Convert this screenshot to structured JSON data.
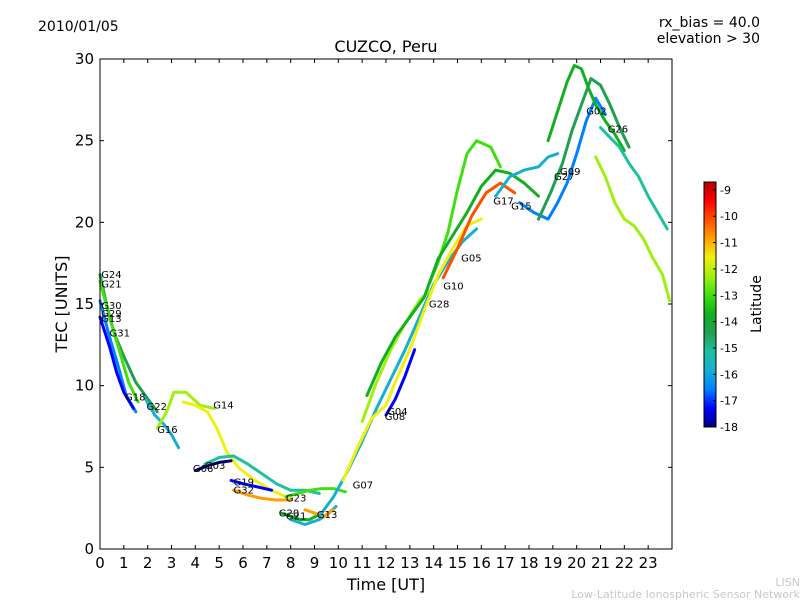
{
  "date_label": "2010/01/05",
  "params": [
    "rx_bias = 40.0",
    "elevation > 30"
  ],
  "watermark": [
    "LISN",
    "Low-Latitude Ionospheric Sensor Network"
  ],
  "chart_data": {
    "type": "scatter",
    "title": "CUZCO, Peru",
    "xlabel": "Time [UT]",
    "ylabel": "TEC [UNITS]",
    "xlim": [
      0,
      24
    ],
    "ylim": [
      0,
      30
    ],
    "xticks": [
      "0",
      "1",
      "2",
      "3",
      "4",
      "5",
      "6",
      "7",
      "8",
      "9",
      "10",
      "11",
      "12",
      "13",
      "14",
      "15",
      "16",
      "17",
      "18",
      "19",
      "20",
      "21",
      "22",
      "23"
    ],
    "yticks": [
      "0",
      "5",
      "10",
      "15",
      "20",
      "25",
      "30"
    ],
    "colorbar": {
      "label": "Latitude",
      "range": [
        -18,
        -8.7
      ],
      "ticks": [
        "-9",
        "-10",
        "-11",
        "-12",
        "-13",
        "-14",
        "-15",
        "-16",
        "-17",
        "-18"
      ],
      "colors": [
        "#00007f",
        "#0000ff",
        "#0080ff",
        "#15b0d0",
        "#1fc0a0",
        "#20a050",
        "#10b020",
        "#40e010",
        "#a0f010",
        "#f0f010",
        "#ffa000",
        "#ff5000",
        "#ff0000",
        "#b00000"
      ]
    },
    "series": [
      {
        "name": "G24",
        "points": [
          [
            0.0,
            16.8
          ],
          [
            0.3,
            14.8
          ],
          [
            0.6,
            13.2
          ],
          [
            1.0,
            11.8
          ],
          [
            1.5,
            10.2
          ],
          [
            2.0,
            9.2
          ],
          [
            2.4,
            8.4
          ]
        ],
        "lat": -14.5
      },
      {
        "name": "G21",
        "points": [
          [
            0.0,
            16.4
          ],
          [
            0.4,
            14.2
          ],
          [
            0.8,
            12.2
          ],
          [
            1.2,
            10.2
          ],
          [
            1.6,
            9.0
          ]
        ],
        "lat": -13.2
      },
      {
        "name": "G30",
        "points": [
          [
            0.0,
            15.2
          ],
          [
            0.4,
            13.0
          ],
          [
            0.8,
            11.0
          ],
          [
            1.1,
            9.4
          ],
          [
            1.5,
            8.4
          ]
        ],
        "lat": -16.8
      },
      {
        "name": "G31",
        "points": [
          [
            0.0,
            14.2
          ],
          [
            0.4,
            12.4
          ],
          [
            0.7,
            10.8
          ],
          [
            1.0,
            9.6
          ],
          [
            1.4,
            8.6
          ]
        ],
        "lat": -17.6
      },
      {
        "name": "G22",
        "points": [
          [
            1.9,
            9.2
          ],
          [
            2.3,
            8.2
          ],
          [
            2.7,
            7.6
          ],
          [
            3.0,
            7.0
          ],
          [
            3.3,
            6.2
          ]
        ],
        "lat": -16.2
      },
      {
        "name": "G16",
        "points": [
          [
            2.4,
            7.4
          ],
          [
            2.8,
            8.4
          ],
          [
            3.1,
            9.6
          ],
          [
            3.6,
            9.6
          ],
          [
            4.2,
            8.8
          ],
          [
            4.8,
            8.6
          ]
        ],
        "lat": -12.4
      },
      {
        "name": "G14",
        "points": [
          [
            3.5,
            9.0
          ],
          [
            4.0,
            8.8
          ],
          [
            4.5,
            8.4
          ],
          [
            4.9,
            7.4
          ],
          [
            5.3,
            6.0
          ],
          [
            5.8,
            5.0
          ],
          [
            6.5,
            4.2
          ],
          [
            7.2,
            3.6
          ],
          [
            7.8,
            3.2
          ]
        ],
        "lat": -11.6
      },
      {
        "name": "G06",
        "points": [
          [
            4.0,
            4.8
          ],
          [
            4.5,
            5.1
          ],
          [
            5.0,
            5.3
          ],
          [
            5.5,
            5.4
          ]
        ],
        "lat": -17.8
      },
      {
        "name": "G03",
        "points": [
          [
            4.4,
            5.2
          ],
          [
            5.0,
            5.6
          ],
          [
            5.6,
            5.7
          ],
          [
            6.2,
            5.2
          ],
          [
            6.8,
            4.6
          ],
          [
            7.4,
            4.0
          ],
          [
            8.0,
            3.6
          ],
          [
            8.6,
            3.6
          ],
          [
            9.2,
            3.4
          ]
        ],
        "lat": -15.4
      },
      {
        "name": "G19",
        "points": [
          [
            5.5,
            4.2
          ],
          [
            6.0,
            4.0
          ],
          [
            6.6,
            3.8
          ],
          [
            7.2,
            3.6
          ]
        ],
        "lat": -17.4
      },
      {
        "name": "G32",
        "points": [
          [
            5.6,
            3.6
          ],
          [
            6.2,
            3.3
          ],
          [
            6.8,
            3.1
          ],
          [
            7.4,
            3.0
          ],
          [
            8.0,
            3.0
          ]
        ],
        "lat": -11.0
      },
      {
        "name": "G23",
        "points": [
          [
            7.8,
            3.2
          ],
          [
            8.3,
            3.4
          ],
          [
            8.8,
            3.6
          ],
          [
            9.3,
            3.7
          ],
          [
            9.8,
            3.7
          ],
          [
            10.3,
            3.5
          ]
        ],
        "lat": -12.8
      },
      {
        "name": "G20",
        "points": [
          [
            7.6,
            2.2
          ],
          [
            8.0,
            2.0
          ],
          [
            8.4,
            1.8
          ],
          [
            8.8,
            1.8
          ],
          [
            9.3,
            2.2
          ]
        ],
        "lat": -13.6
      },
      {
        "name": "G01",
        "points": [
          [
            8.0,
            1.8
          ],
          [
            8.6,
            1.5
          ],
          [
            9.2,
            1.8
          ],
          [
            9.6,
            2.2
          ],
          [
            9.9,
            2.6
          ]
        ],
        "lat": -15.6
      },
      {
        "name": "G13",
        "points": [
          [
            8.6,
            2.4
          ],
          [
            9.0,
            2.2
          ],
          [
            9.4,
            2.0
          ],
          [
            9.8,
            2.4
          ]
        ],
        "lat": -11.2
      },
      {
        "name": "G07",
        "points": [
          [
            9.2,
            2.0
          ],
          [
            9.8,
            3.2
          ],
          [
            10.4,
            4.8
          ],
          [
            11.0,
            6.6
          ],
          [
            11.6,
            8.6
          ],
          [
            12.2,
            10.4
          ],
          [
            12.8,
            12.2
          ],
          [
            13.4,
            14.2
          ],
          [
            14.0,
            16.2
          ],
          [
            14.6,
            17.6
          ],
          [
            15.2,
            18.8
          ],
          [
            15.8,
            19.6
          ]
        ],
        "lat": -16.0
      },
      {
        "name": "G04",
        "points": [
          [
            10.2,
            4.2
          ],
          [
            10.8,
            6.2
          ],
          [
            11.4,
            8.0
          ],
          [
            12.0,
            8.8
          ],
          [
            12.5,
            10.6
          ],
          [
            13.0,
            12.2
          ],
          [
            13.6,
            14.6
          ],
          [
            14.2,
            16.8
          ],
          [
            14.8,
            18.4
          ],
          [
            15.4,
            19.8
          ],
          [
            16.0,
            20.2
          ]
        ],
        "lat": -11.8
      },
      {
        "name": "G08",
        "points": [
          [
            12.0,
            8.2
          ],
          [
            12.4,
            9.2
          ],
          [
            12.8,
            10.6
          ],
          [
            13.2,
            12.2
          ]
        ],
        "lat": -17.2
      },
      {
        "name": "G28",
        "points": [
          [
            11.0,
            7.8
          ],
          [
            11.6,
            10.2
          ],
          [
            12.2,
            12.2
          ],
          [
            12.8,
            13.8
          ],
          [
            13.4,
            15.2
          ],
          [
            13.8,
            15.8
          ]
        ],
        "lat": -12.6
      },
      {
        "name": "G10",
        "points": [
          [
            13.8,
            16.2
          ],
          [
            14.2,
            17.6
          ],
          [
            14.6,
            19.4
          ],
          [
            15.0,
            22.0
          ],
          [
            15.4,
            24.2
          ],
          [
            15.8,
            25.0
          ],
          [
            16.4,
            24.6
          ],
          [
            16.8,
            23.4
          ]
        ],
        "lat": -13.0
      },
      {
        "name": "G05",
        "points": [
          [
            11.2,
            9.4
          ],
          [
            11.8,
            11.4
          ],
          [
            12.4,
            13.0
          ],
          [
            13.0,
            14.2
          ],
          [
            13.6,
            15.4
          ],
          [
            14.2,
            17.8
          ],
          [
            14.8,
            19.2
          ],
          [
            15.4,
            20.6
          ],
          [
            16.0,
            22.2
          ],
          [
            16.6,
            23.2
          ],
          [
            17.2,
            23.0
          ],
          [
            17.8,
            22.4
          ],
          [
            18.4,
            21.6
          ]
        ],
        "lat": -14.0
      },
      {
        "name": "G17",
        "points": [
          [
            14.4,
            16.6
          ],
          [
            15.0,
            18.4
          ],
          [
            15.6,
            20.4
          ],
          [
            16.2,
            21.8
          ],
          [
            16.8,
            22.4
          ],
          [
            17.4,
            21.8
          ]
        ],
        "lat": -10.2
      },
      {
        "name": "G15",
        "points": [
          [
            16.6,
            21.6
          ],
          [
            17.2,
            22.8
          ],
          [
            17.8,
            23.2
          ],
          [
            18.4,
            23.4
          ],
          [
            18.8,
            24.0
          ],
          [
            19.2,
            24.2
          ]
        ],
        "lat": -15.8
      },
      {
        "name": "G09",
        "points": [
          [
            17.6,
            21.2
          ],
          [
            18.2,
            20.6
          ],
          [
            18.8,
            20.2
          ],
          [
            19.2,
            21.2
          ],
          [
            19.6,
            22.4
          ],
          [
            20.0,
            24.2
          ],
          [
            20.4,
            26.2
          ],
          [
            20.8,
            27.6
          ],
          [
            21.2,
            26.6
          ]
        ],
        "lat": -16.6
      },
      {
        "name": "G27",
        "points": [
          [
            18.4,
            20.2
          ],
          [
            18.9,
            21.8
          ],
          [
            19.4,
            23.6
          ],
          [
            19.8,
            25.6
          ],
          [
            20.2,
            27.2
          ],
          [
            20.6,
            28.8
          ],
          [
            21.0,
            28.4
          ],
          [
            21.4,
            27.2
          ],
          [
            21.8,
            25.8
          ],
          [
            22.2,
            24.6
          ]
        ],
        "lat": -14.6
      },
      {
        "name": "G02",
        "points": [
          [
            18.8,
            25.0
          ],
          [
            19.2,
            26.8
          ],
          [
            19.6,
            28.6
          ],
          [
            19.9,
            29.6
          ],
          [
            20.2,
            29.4
          ],
          [
            20.5,
            28.2
          ],
          [
            20.8,
            27.2
          ],
          [
            21.2,
            26.2
          ],
          [
            21.6,
            25.4
          ],
          [
            22.0,
            24.4
          ]
        ],
        "lat": -13.4
      },
      {
        "name": "G26",
        "points": [
          [
            21.0,
            25.8
          ],
          [
            21.4,
            25.2
          ],
          [
            21.8,
            24.6
          ],
          [
            22.2,
            23.6
          ],
          [
            22.6,
            22.8
          ],
          [
            23.0,
            21.6
          ],
          [
            23.4,
            20.6
          ],
          [
            23.8,
            19.6
          ]
        ],
        "lat": -14.8
      },
      {
        "name": "G29",
        "points": [
          [
            20.8,
            24.0
          ],
          [
            21.2,
            22.8
          ],
          [
            21.6,
            21.2
          ],
          [
            22.0,
            20.2
          ],
          [
            22.4,
            19.8
          ],
          [
            22.8,
            19.0
          ],
          [
            23.2,
            17.8
          ],
          [
            23.6,
            16.8
          ],
          [
            23.9,
            15.2
          ]
        ],
        "lat": -12.2
      }
    ],
    "annotations": [
      {
        "text": "G24",
        "x": 0.05,
        "y": 16.6
      },
      {
        "text": "G21",
        "x": 0.05,
        "y": 16.0
      },
      {
        "text": "G30",
        "x": 0.05,
        "y": 14.7
      },
      {
        "text": "G29",
        "x": 0.05,
        "y": 14.2
      },
      {
        "text": "G13",
        "x": 0.05,
        "y": 13.9
      },
      {
        "text": "G31",
        "x": 0.4,
        "y": 13.0
      },
      {
        "text": "G18",
        "x": 1.05,
        "y": 9.1
      },
      {
        "text": "G22",
        "x": 1.95,
        "y": 8.5
      },
      {
        "text": "G16",
        "x": 2.4,
        "y": 7.1
      },
      {
        "text": "G14",
        "x": 4.75,
        "y": 8.6
      },
      {
        "text": "G06",
        "x": 3.9,
        "y": 4.7
      },
      {
        "text": "G03",
        "x": 4.4,
        "y": 4.9
      },
      {
        "text": "G19",
        "x": 5.6,
        "y": 3.9
      },
      {
        "text": "G32",
        "x": 5.6,
        "y": 3.4
      },
      {
        "text": "G23",
        "x": 7.8,
        "y": 2.9
      },
      {
        "text": "G20",
        "x": 7.5,
        "y": 2.0
      },
      {
        "text": "G21",
        "x": 7.8,
        "y": 1.8
      },
      {
        "text": "G13",
        "x": 9.1,
        "y": 1.9
      },
      {
        "text": "G07",
        "x": 10.6,
        "y": 3.7
      },
      {
        "text": "G04",
        "x": 12.05,
        "y": 8.2
      },
      {
        "text": "G08",
        "x": 11.95,
        "y": 7.9
      },
      {
        "text": "G28",
        "x": 13.8,
        "y": 14.8
      },
      {
        "text": "G10",
        "x": 14.4,
        "y": 15.9
      },
      {
        "text": "G05",
        "x": 15.15,
        "y": 17.6
      },
      {
        "text": "G17",
        "x": 16.5,
        "y": 21.1
      },
      {
        "text": "G15",
        "x": 17.25,
        "y": 20.8
      },
      {
        "text": "G09",
        "x": 19.3,
        "y": 22.9
      },
      {
        "text": "G27",
        "x": 19.05,
        "y": 22.6
      },
      {
        "text": "G02",
        "x": 20.4,
        "y": 26.6
      },
      {
        "text": "G26",
        "x": 21.3,
        "y": 25.5
      }
    ]
  }
}
